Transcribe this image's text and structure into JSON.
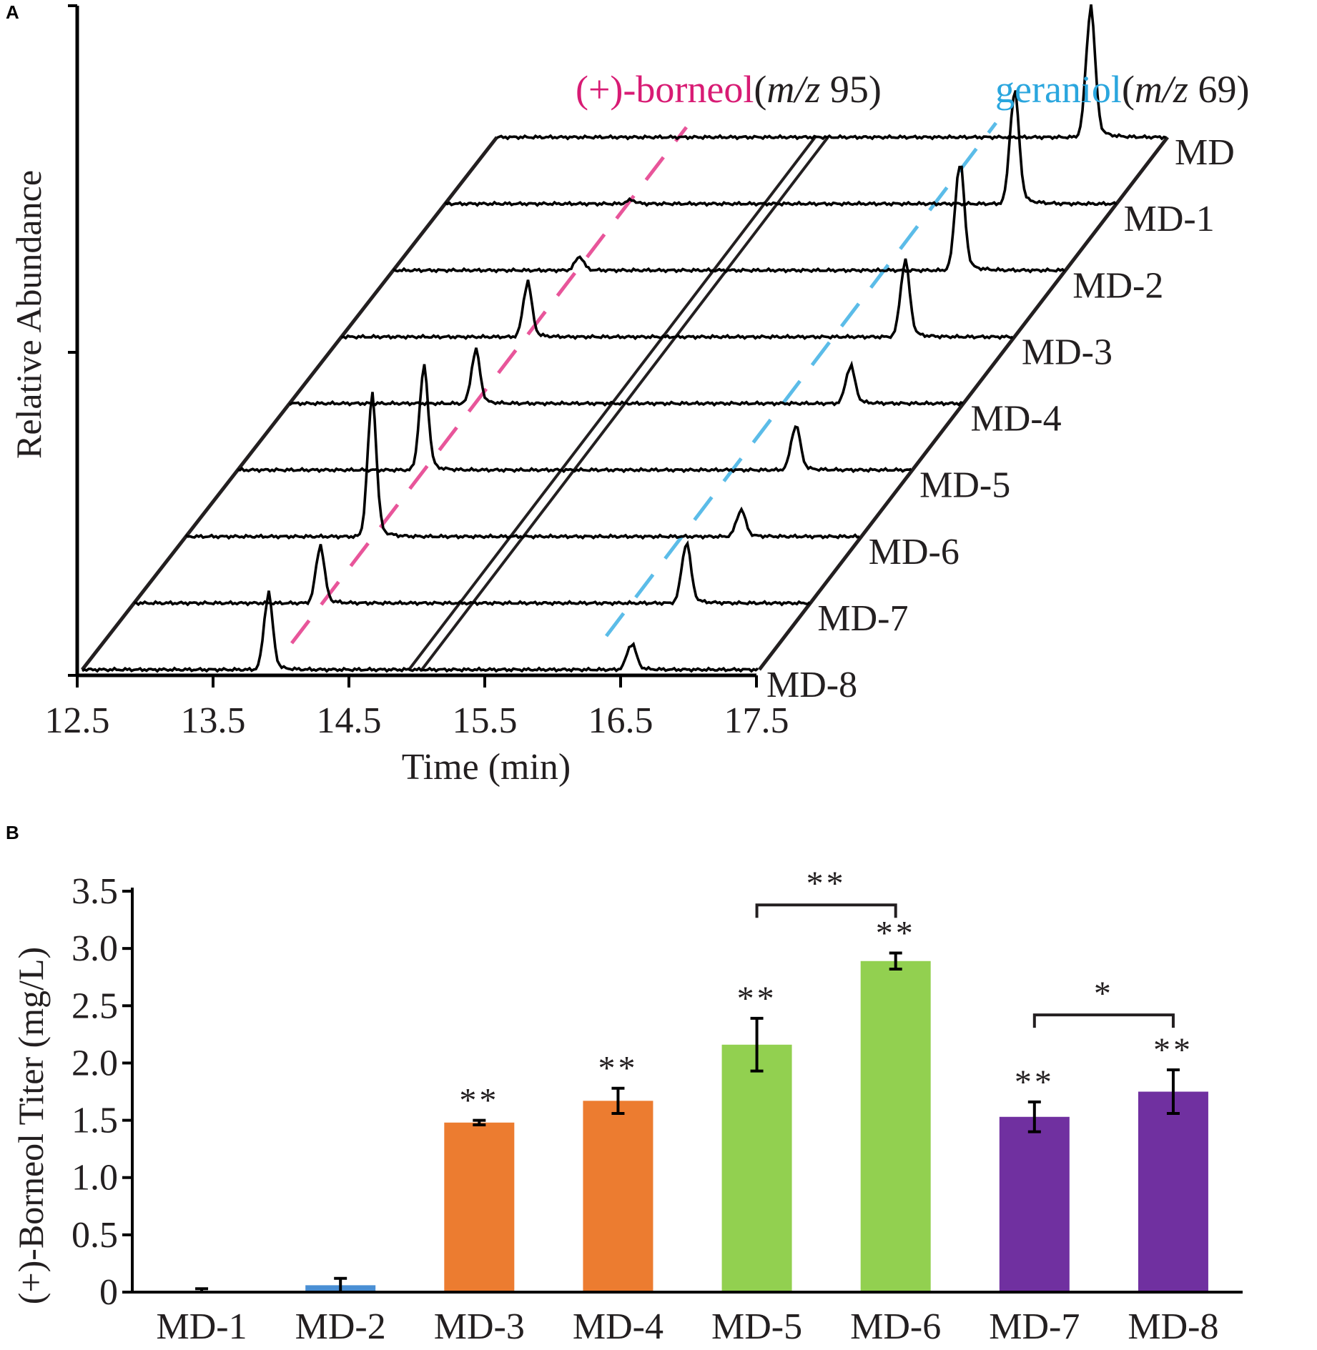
{
  "panel_a": {
    "letter": "A",
    "ylabel": "Relative Abundance",
    "xlabel": "Time (min)",
    "x_ticks": [
      "12.5",
      "13.5",
      "14.5",
      "15.5",
      "16.5",
      "17.5"
    ],
    "legend": {
      "borneol_name": "(+)-borneol",
      "borneol_mz_prefix": "m/z",
      "borneol_mz_value": " 95)",
      "borneol_mz_open": "(",
      "geraniol_name": "geraniol",
      "geraniol_mz_open": "(",
      "geraniol_mz_prefix": "m/z",
      "geraniol_mz_value": " 69)"
    },
    "colors": {
      "borneol": "#e8559a",
      "geraniol": "#5bbce8",
      "trace": "#000000"
    },
    "traces": [
      {
        "label": "MD",
        "borneol_height": 0,
        "geraniol_height": 170
      },
      {
        "label": "MD-1",
        "borneol_height": 5,
        "geraniol_height": 150
      },
      {
        "label": "MD-2",
        "borneol_height": 18,
        "geraniol_height": 145
      },
      {
        "label": "MD-3",
        "borneol_height": 72,
        "geraniol_height": 100
      },
      {
        "label": "MD-4",
        "borneol_height": 70,
        "geraniol_height": 50
      },
      {
        "label": "MD-5",
        "borneol_height": 135,
        "geraniol_height": 60
      },
      {
        "label": "MD-6",
        "borneol_height": 185,
        "geraniol_height": 35
      },
      {
        "label": "MD-7",
        "borneol_height": 75,
        "geraniol_height": 80
      },
      {
        "label": "MD-8",
        "borneol_height": 100,
        "geraniol_height": 35
      }
    ]
  },
  "chart_data": {
    "type": "bar",
    "panel_letter": "B",
    "title": "",
    "xlabel": "",
    "ylabel": "(+)-Borneol Titer (mg/L)",
    "ylim": [
      0,
      3.5
    ],
    "y_ticks": [
      "0",
      "0.5",
      "1.0",
      "1.5",
      "2.0",
      "2.5",
      "3.0",
      "3.5"
    ],
    "categories": [
      "MD-1",
      "MD-2",
      "MD-3",
      "MD-4",
      "MD-5",
      "MD-6",
      "MD-7",
      "MD-8"
    ],
    "values": [
      0.01,
      0.06,
      1.48,
      1.67,
      2.16,
      2.89,
      1.53,
      1.75
    ],
    "errors": [
      0.02,
      0.06,
      0.02,
      0.11,
      0.23,
      0.07,
      0.13,
      0.19
    ],
    "colors": [
      "#4a8fd4",
      "#4a8fd4",
      "#ec7c30",
      "#ec7c30",
      "#92d050",
      "#92d050",
      "#7030a0",
      "#7030a0"
    ],
    "significance": [
      "",
      "",
      "**",
      "**",
      "**",
      "**",
      "**",
      "**"
    ],
    "brackets": [
      {
        "from": "MD-5",
        "to": "MD-6",
        "label": "**",
        "level": 3.38
      },
      {
        "from": "MD-7",
        "to": "MD-8",
        "label": "*",
        "level": 2.42
      }
    ]
  }
}
